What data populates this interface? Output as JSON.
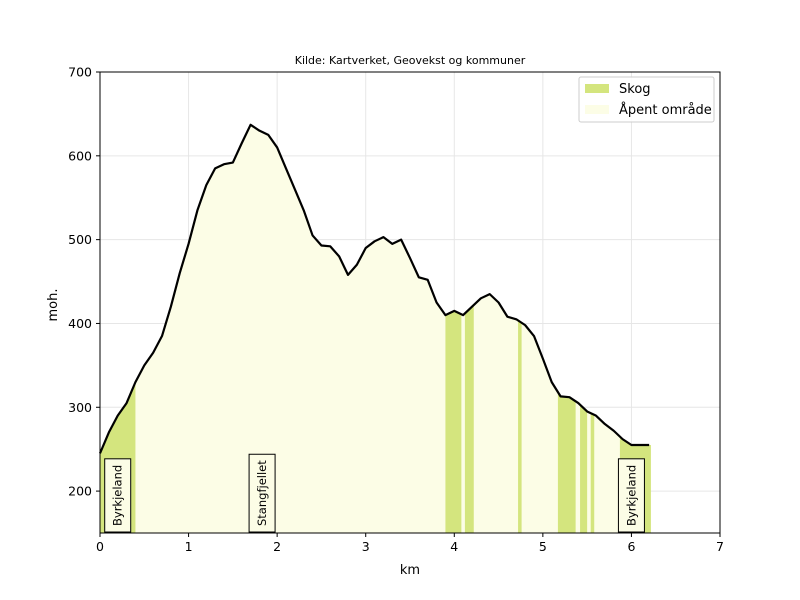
{
  "chart_data": {
    "type": "area",
    "source": "Kilde: Kartverket, Geovekst og kommuner",
    "xlabel": "km",
    "ylabel": "moh.",
    "xlim": [
      0,
      7
    ],
    "ylim": [
      150,
      700
    ],
    "xticks": [
      "0",
      "1",
      "2",
      "3",
      "4",
      "5",
      "6",
      "7"
    ],
    "yticks": [
      "200",
      "300",
      "400",
      "500",
      "600",
      "700"
    ],
    "grid": true,
    "legend_position": "top-right",
    "colors": {
      "profile_line": "#000000",
      "forest": "#d4e57e",
      "open": "#fcfde6",
      "grid": "#e6e6e6"
    },
    "legend": [
      {
        "label": "Skog",
        "color": "#d4e57e"
      },
      {
        "label": "Åpent område",
        "color": "#fcfde6"
      }
    ],
    "profile": {
      "x": [
        0,
        0.1,
        0.2,
        0.3,
        0.4,
        0.5,
        0.6,
        0.7,
        0.8,
        0.9,
        1.0,
        1.1,
        1.2,
        1.3,
        1.4,
        1.5,
        1.6,
        1.7,
        1.8,
        1.9,
        2.0,
        2.1,
        2.2,
        2.3,
        2.4,
        2.5,
        2.6,
        2.7,
        2.8,
        2.9,
        3.0,
        3.1,
        3.2,
        3.3,
        3.4,
        3.5,
        3.6,
        3.7,
        3.8,
        3.9,
        4.0,
        4.1,
        4.2,
        4.3,
        4.4,
        4.5,
        4.6,
        4.7,
        4.8,
        4.9,
        5.0,
        5.1,
        5.2,
        5.3,
        5.4,
        5.5,
        5.6,
        5.7,
        5.8,
        5.9,
        6.0,
        6.1,
        6.2
      ],
      "y": [
        245,
        270,
        290,
        305,
        330,
        350,
        365,
        385,
        420,
        460,
        495,
        535,
        565,
        585,
        590,
        592,
        615,
        637,
        630,
        625,
        610,
        585,
        560,
        535,
        505,
        493,
        492,
        480,
        458,
        470,
        490,
        498,
        503,
        495,
        500,
        478,
        455,
        452,
        425,
        410,
        415,
        410,
        420,
        430,
        435,
        425,
        408,
        405,
        398,
        385,
        358,
        330,
        313,
        312,
        305,
        295,
        290,
        280,
        272,
        262,
        255,
        255,
        255
      ]
    },
    "forest_segments": [
      [
        0.0,
        0.4
      ],
      [
        3.9,
        4.08
      ],
      [
        4.12,
        4.22
      ],
      [
        4.72,
        4.76
      ],
      [
        5.17,
        5.37
      ],
      [
        5.42,
        5.5
      ],
      [
        5.54,
        5.58
      ],
      [
        5.87,
        6.22
      ]
    ],
    "labels": [
      {
        "text": "Byrkjeland",
        "x": 0.2
      },
      {
        "text": "Stangfjellet",
        "x": 1.83
      },
      {
        "text": "Byrkjeland",
        "x": 6.0
      }
    ]
  }
}
